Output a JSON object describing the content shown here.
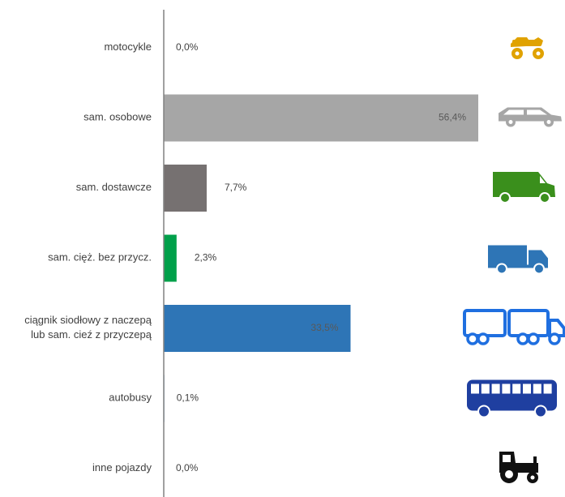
{
  "chart_data": {
    "type": "bar",
    "orientation": "horizontal",
    "categories": [
      [
        "motocykle"
      ],
      [
        "sam. osobowe"
      ],
      [
        "sam. dostawcze"
      ],
      [
        "sam. cięż. bez przycz."
      ],
      [
        "ciągnik siodłowy z naczepą",
        "lub sam. cieź z przyczepą"
      ],
      [
        "autobusy"
      ],
      [
        "inne pojazdy"
      ]
    ],
    "values": [
      0.0,
      56.4,
      7.7,
      2.3,
      33.5,
      0.1,
      0.0
    ],
    "value_labels": [
      "0,0%",
      "56,4%",
      "7,7%",
      "2,3%",
      "33,5%",
      "0,1%",
      "0,0%"
    ],
    "colors": [
      "#f0b400",
      "#a6a6a6",
      "#767171",
      "#00a04a",
      "#2e75b6",
      "#2e75b6",
      "#222222"
    ],
    "icons": [
      "motorcycle-icon",
      "car-icon",
      "van-icon",
      "truck-icon",
      "truck-trailer-icon",
      "bus-icon",
      "tractor-icon"
    ],
    "icon_colors": [
      "#e0a200",
      "#a6a6a6",
      "#3a8f1c",
      "#2e75b6",
      "#1f6fe0",
      "#1f3fa0",
      "#111111"
    ],
    "xlim": [
      0,
      60
    ],
    "grid": false,
    "legend": "none"
  }
}
